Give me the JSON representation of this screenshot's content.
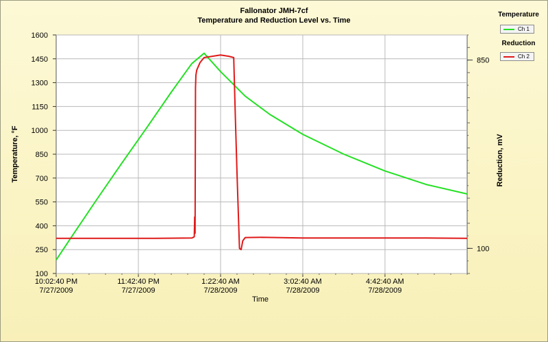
{
  "chart_data": {
    "type": "line",
    "title": "Fallonator JMH-7cf",
    "subtitle": "Temperature and Reduction Level vs. Time",
    "xlabel": "Time",
    "ylabel_left": "Temperature, °F",
    "ylabel_right": "Reduction, mV",
    "grid": true,
    "x_ticks": [
      {
        "time": "10:02:40 PM",
        "date": "7/27/2009"
      },
      {
        "time": "11:42:40 PM",
        "date": "7/27/2009"
      },
      {
        "time": "1:22:40 AM",
        "date": "7/28/2009"
      },
      {
        "time": "3:02:40 AM",
        "date": "7/28/2009"
      },
      {
        "time": "4:42:40 AM",
        "date": "7/28/2009"
      }
    ],
    "x_range_minutes": [
      0,
      500
    ],
    "y_left_ticks": [
      100,
      250,
      400,
      550,
      700,
      850,
      1000,
      1150,
      1300,
      1450,
      1600
    ],
    "y_left_range": [
      100,
      1600
    ],
    "y_right_ticks": [
      100,
      850
    ],
    "y_right_range": [
      0,
      950
    ],
    "legend": [
      {
        "group": "Temperature",
        "label": "Ch 1",
        "color": "#22e022"
      },
      {
        "group": "Reduction",
        "label": "Ch 2",
        "color": "#e01818"
      }
    ],
    "series": [
      {
        "name": "Ch 1",
        "axis": "left",
        "color": "#22e022",
        "x": [
          0,
          20,
          50,
          80,
          110,
          140,
          165,
          180,
          200,
          230,
          260,
          300,
          350,
          400,
          450,
          500
        ],
        "y": [
          185,
          340,
          570,
          795,
          1015,
          1240,
          1420,
          1485,
          1370,
          1215,
          1100,
          975,
          850,
          745,
          660,
          600
        ]
      },
      {
        "name": "Ch 2",
        "axis": "right",
        "color": "#e01818",
        "x": [
          0,
          60,
          120,
          165,
          168,
          168.5,
          169,
          169.5,
          170,
          171,
          175,
          180,
          200,
          210,
          216,
          218,
          220,
          223,
          225,
          227,
          230,
          250,
          300,
          350,
          400,
          450,
          500
        ],
        "y": [
          140,
          140,
          140,
          141,
          146,
          225,
          160,
          740,
          790,
          810,
          840,
          860,
          870,
          865,
          860,
          620,
          400,
          100,
          95,
          130,
          143,
          144,
          141,
          141,
          141,
          141,
          140
        ]
      }
    ]
  }
}
